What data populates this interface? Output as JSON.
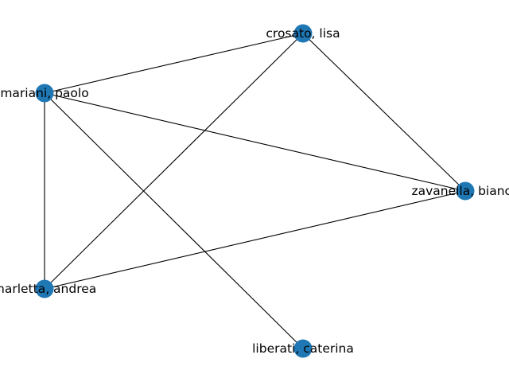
{
  "graph": {
    "type": "network",
    "node_color": "#1f77b4",
    "edge_color": "#000000",
    "nodes": [
      {
        "id": "crosato",
        "label": "crosato, lisa"
      },
      {
        "id": "mariani",
        "label": "mariani, paolo"
      },
      {
        "id": "zavanella",
        "label": "zavanella, bianca"
      },
      {
        "id": "marletta",
        "label": "marletta, andrea"
      },
      {
        "id": "liberati",
        "label": "liberati, caterina"
      }
    ],
    "edges": [
      {
        "source": "crosato",
        "target": "mariani"
      },
      {
        "source": "crosato",
        "target": "zavanella"
      },
      {
        "source": "crosato",
        "target": "marletta"
      },
      {
        "source": "mariani",
        "target": "zavanella"
      },
      {
        "source": "mariani",
        "target": "marletta"
      },
      {
        "source": "mariani",
        "target": "liberati"
      },
      {
        "source": "zavanella",
        "target": "marletta"
      }
    ]
  }
}
